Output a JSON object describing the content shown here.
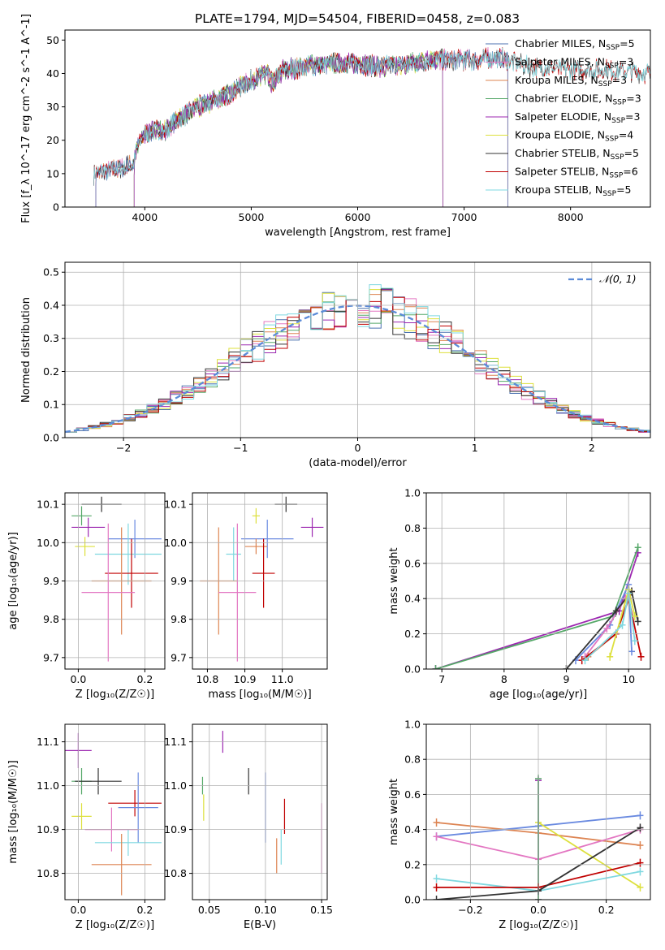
{
  "title": "PLATE=1794, MJD=54504, FIBERID=0458, z=0.083",
  "colors": {
    "Chabrier MILES": "#4c72b0",
    "Salpeter MILES": "#e377c2",
    "Kroupa MILES": "#dd8452",
    "Chabrier ELODIE": "#55a868",
    "Salpeter ELODIE": "#9c27b0",
    "Kroupa ELODIE": "#dde03d",
    "Chabrier STELIB": "#333333",
    "Salpeter STELIB": "#c00000",
    "Kroupa STELIB": "#7fd8e0",
    "Chabrier MILES (weights)": "#6a8ae0",
    "Chabrier ELODIE (markers)": "#4d8f4d"
  },
  "chart_data": [
    {
      "type": "line",
      "name": "spectrum",
      "xlabel": "wavelength [Angstrom, rest frame]",
      "ylabel": "Flux [f_λ 10^-17 erg cm^-2 s^-1 A^-1]",
      "xlim": [
        3250,
        8750
      ],
      "ylim": [
        0,
        53
      ],
      "xticks": [
        "4000",
        "5000",
        "6000",
        "7000",
        "8000"
      ],
      "yticks": [
        "0",
        "10",
        "20",
        "30",
        "40",
        "50"
      ],
      "legend_position": "right",
      "legend": [
        {
          "label": "Chabrier MILES, N",
          "sub": "SSP",
          "tail": "=5",
          "key": "Chabrier MILES"
        },
        {
          "label": "Salpeter MILES, N",
          "sub": "SSP",
          "tail": "=3",
          "key": "Salpeter MILES"
        },
        {
          "label": "Kroupa MILES, N",
          "sub": "SSP",
          "tail": "=3",
          "key": "Kroupa MILES"
        },
        {
          "label": "Chabrier ELODIE, N",
          "sub": "SSP",
          "tail": "=3",
          "key": "Chabrier ELODIE"
        },
        {
          "label": "Salpeter ELODIE, N",
          "sub": "SSP",
          "tail": "=3",
          "key": "Salpeter ELODIE"
        },
        {
          "label": "Kroupa ELODIE, N",
          "sub": "SSP",
          "tail": "=4",
          "key": "Kroupa ELODIE"
        },
        {
          "label": "Chabrier STELIB, N",
          "sub": "SSP",
          "tail": "=5",
          "key": "Chabrier STELIB"
        },
        {
          "label": "Salpeter STELIB, N",
          "sub": "SSP",
          "tail": "=6",
          "key": "Salpeter STELIB"
        },
        {
          "label": "Kroupa STELIB, N",
          "sub": "SSP",
          "tail": "=5",
          "key": "Kroupa STELIB"
        }
      ],
      "continuum_x": [
        3520,
        3700,
        3900,
        3920,
        4000,
        4100,
        4200,
        4300,
        4500,
        4800,
        5000,
        5150,
        5200,
        5300,
        5500,
        5800,
        6000,
        6200,
        6500,
        6700,
        6900,
        7100,
        7300,
        7600,
        8000,
        8400,
        8750
      ],
      "continuum_y": [
        10,
        11,
        13,
        17,
        22,
        23,
        23,
        26,
        30,
        34,
        38,
        40,
        37,
        41,
        42,
        43,
        43,
        42,
        43,
        44,
        44,
        44,
        45,
        42,
        41,
        41,
        40
      ],
      "cutoffs": [
        {
          "key": "Kroupa MILES",
          "x0": 3540,
          "x1": 7410
        },
        {
          "key": "Salpeter MILES",
          "x0": 3540,
          "x1": 7410
        },
        {
          "key": "Chabrier MILES",
          "x0": 3540,
          "x1": 7410
        },
        {
          "key": "Kroupa ELODIE",
          "x0": 3900,
          "x1": 6800
        },
        {
          "key": "Chabrier ELODIE",
          "x0": 3900,
          "x1": 6800
        },
        {
          "key": "Salpeter ELODIE",
          "x0": 3900,
          "x1": 6800
        },
        {
          "key": "Chabrier STELIB",
          "x0": 3520,
          "x1": 8750
        },
        {
          "key": "Salpeter STELIB",
          "x0": 3520,
          "x1": 8750
        },
        {
          "key": "Kroupa STELIB",
          "x0": 3520,
          "x1": 8750
        }
      ]
    },
    {
      "type": "histogram",
      "name": "residuals",
      "xlabel": "(data-model)/error",
      "ylabel": "Normed distribution",
      "xlim": [
        -2.5,
        2.5
      ],
      "ylim": [
        0,
        0.53
      ],
      "xticks": [
        "−2",
        "−1",
        "0",
        "1",
        "2"
      ],
      "yticks": [
        "0.0",
        "0.1",
        "0.2",
        "0.3",
        "0.4",
        "0.5"
      ],
      "legend": "𝒩(0, 1)",
      "legend_position": "top-right",
      "bin_width": 0.1
    },
    {
      "type": "scatter",
      "name": "age-vs-Z",
      "xlabel": "Z [log₁₀(Z/Z☉)]",
      "ylabel": "age  [log₁₀(age/yr)]",
      "xlim": [
        -0.04,
        0.26
      ],
      "ylim": [
        9.67,
        10.13
      ],
      "xticks": [
        "0.0",
        "0.2"
      ],
      "yticks": [
        "9.7",
        "9.8",
        "9.9",
        "10.0",
        "10.1"
      ],
      "points": [
        {
          "key": "Chabrier STELIB",
          "x": 0.07,
          "y": 10.1,
          "xerr": 0.06,
          "yerr": 0.02
        },
        {
          "key": "Chabrier ELODIE",
          "x": 0.01,
          "y": 10.07,
          "xerr": 0.03,
          "yerr": 0.025
        },
        {
          "key": "Salpeter ELODIE",
          "x": 0.03,
          "y": 10.04,
          "xerr": 0.05,
          "yerr": 0.025
        },
        {
          "key": "Chabrier MILES (weights)",
          "x": 0.17,
          "y": 10.01,
          "xerr": 0.08,
          "yerr": 0.05
        },
        {
          "key": "Kroupa ELODIE",
          "x": 0.02,
          "y": 9.99,
          "xerr": 0.03,
          "yerr": 0.025
        },
        {
          "key": "Kroupa STELIB",
          "x": 0.15,
          "y": 9.97,
          "xerr": 0.1,
          "yerr": 0.08
        },
        {
          "key": "Salpeter STELIB",
          "x": 0.16,
          "y": 9.92,
          "xerr": 0.08,
          "yerr": 0.09
        },
        {
          "key": "Kroupa MILES",
          "x": 0.13,
          "y": 9.9,
          "xerr": 0.09,
          "yerr": 0.14
        },
        {
          "key": "Salpeter MILES",
          "x": 0.09,
          "y": 9.87,
          "xerr": 0.08,
          "yerr": 0.18
        }
      ]
    },
    {
      "type": "scatter",
      "name": "age-vs-mass",
      "xlabel": "mass [log₁₀(M/M☉)]",
      "ylabel": "",
      "xlim": [
        10.76,
        11.12
      ],
      "ylim": [
        9.67,
        10.13
      ],
      "xticks": [
        "10.8",
        "10.9",
        "11.0"
      ],
      "yticks": [
        "9.7",
        "9.8",
        "9.9",
        "10.0",
        "10.1"
      ],
      "points": [
        {
          "key": "Chabrier STELIB",
          "x": 11.01,
          "y": 10.1,
          "xerr": 0.03,
          "yerr": 0.02
        },
        {
          "key": "Kroupa ELODIE",
          "x": 10.93,
          "y": 10.07,
          "xerr": 0.01,
          "yerr": 0.02
        },
        {
          "key": "Salpeter ELODIE",
          "x": 11.08,
          "y": 10.04,
          "xerr": 0.03,
          "yerr": 0.025
        },
        {
          "key": "Chabrier MILES (weights)",
          "x": 10.96,
          "y": 10.01,
          "xerr": 0.07,
          "yerr": 0.05
        },
        {
          "key": "Kroupa MILES",
          "x": 10.93,
          "y": 9.99,
          "xerr": 0.03,
          "yerr": 0.02
        },
        {
          "key": "Kroupa STELIB",
          "x": 10.87,
          "y": 9.97,
          "xerr": 0.02,
          "yerr": 0.07
        },
        {
          "key": "Salpeter STELIB",
          "x": 10.95,
          "y": 9.92,
          "xerr": 0.03,
          "yerr": 0.09
        },
        {
          "key": "Kroupa MILES",
          "x": 10.83,
          "y": 9.9,
          "xerr": 0.05,
          "yerr": 0.14
        },
        {
          "key": "Salpeter MILES",
          "x": 10.88,
          "y": 9.87,
          "xerr": 0.05,
          "yerr": 0.18
        }
      ]
    },
    {
      "type": "line",
      "name": "weight-vs-age",
      "xlabel": "age  [log₁₀(age/yr)]",
      "ylabel": "mass weight",
      "xlim": [
        6.75,
        10.35
      ],
      "ylim": [
        0,
        1.0
      ],
      "xticks": [
        "7",
        "8",
        "9",
        "10"
      ],
      "yticks": [
        "0.0",
        "0.2",
        "0.4",
        "0.6",
        "0.8",
        "1.0"
      ],
      "grid": true,
      "series": [
        {
          "key": "Salpeter ELODIE",
          "x": [
            6.9,
            9.85,
            10.15
          ],
          "y": [
            0.0,
            0.33,
            0.66
          ]
        },
        {
          "key": "Chabrier ELODIE",
          "x": [
            6.9,
            9.75,
            10.15
          ],
          "y": [
            0.0,
            0.3,
            0.69
          ]
        },
        {
          "key": "Chabrier MILES (weights)",
          "x": [
            9.15,
            9.7,
            10.0,
            10.05
          ],
          "y": [
            0.05,
            0.25,
            0.48,
            0.1
          ]
        },
        {
          "key": "Salpeter MILES",
          "x": [
            9.3,
            9.65,
            9.95
          ],
          "y": [
            0.07,
            0.23,
            0.4
          ]
        },
        {
          "key": "Kroupa MILES",
          "x": [
            9.35,
            9.8,
            10.05
          ],
          "y": [
            0.07,
            0.2,
            0.44
          ]
        },
        {
          "key": "Salpeter STELIB",
          "x": [
            9.25,
            9.8,
            10.0,
            10.2
          ],
          "y": [
            0.05,
            0.2,
            0.4,
            0.07
          ]
        },
        {
          "key": "Chabrier STELIB",
          "x": [
            9.0,
            9.8,
            10.05,
            10.15
          ],
          "y": [
            0.0,
            0.33,
            0.44,
            0.27
          ]
        },
        {
          "key": "Kroupa ELODIE",
          "x": [
            9.7,
            10.0,
            10.1
          ],
          "y": [
            0.07,
            0.45,
            0.3
          ]
        },
        {
          "key": "Kroupa STELIB",
          "x": [
            9.3,
            9.9,
            10.0,
            10.1
          ],
          "y": [
            0.05,
            0.25,
            0.43,
            0.16
          ]
        }
      ]
    },
    {
      "type": "scatter",
      "name": "mass-vs-Z",
      "xlabel": "Z [log₁₀(Z/Z☉)]",
      "ylabel": "mass [log₁₀(M/M☉)]",
      "xlim": [
        -0.04,
        0.26
      ],
      "ylim": [
        10.74,
        11.14
      ],
      "xticks": [
        "0.0",
        "0.2"
      ],
      "yticks": [
        "10.8",
        "10.9",
        "11.0",
        "11.1"
      ],
      "points": [
        {
          "key": "Salpeter ELODIE",
          "x": 0.0,
          "y": 11.08,
          "xerr": 0.04,
          "yerr": 0.04
        },
        {
          "key": "Chabrier ELODIE",
          "x": 0.01,
          "y": 11.01,
          "xerr": 0.03,
          "yerr": 0.03
        },
        {
          "key": "Chabrier STELIB",
          "x": 0.06,
          "y": 11.01,
          "xerr": 0.07,
          "yerr": 0.03
        },
        {
          "key": "Salpeter STELIB",
          "x": 0.17,
          "y": 10.96,
          "xerr": 0.08,
          "yerr": 0.03
        },
        {
          "key": "Chabrier MILES (weights)",
          "x": 0.18,
          "y": 10.95,
          "xerr": 0.06,
          "yerr": 0.08
        },
        {
          "key": "Kroupa ELODIE",
          "x": 0.01,
          "y": 10.93,
          "xerr": 0.03,
          "yerr": 0.03
        },
        {
          "key": "Salpeter MILES",
          "x": 0.1,
          "y": 10.9,
          "xerr": 0.08,
          "yerr": 0.05
        },
        {
          "key": "Kroupa STELIB",
          "x": 0.15,
          "y": 10.87,
          "xerr": 0.1,
          "yerr": 0.03
        },
        {
          "key": "Kroupa MILES",
          "x": 0.13,
          "y": 10.82,
          "xerr": 0.09,
          "yerr": 0.07
        }
      ]
    },
    {
      "type": "scatter",
      "name": "mass-vs-EBV",
      "xlabel": "E(B-V)",
      "ylabel": "",
      "xlim": [
        0.035,
        0.155
      ],
      "ylim": [
        10.74,
        11.14
      ],
      "xticks": [
        "0.05",
        "0.10",
        "0.15"
      ],
      "yticks": [
        "10.8",
        "10.9",
        "11.0",
        "11.1"
      ],
      "points": [
        {
          "key": "Salpeter ELODIE",
          "x": 0.062,
          "y": 11.1,
          "yerr": 0.025
        },
        {
          "key": "Chabrier ELODIE",
          "x": 0.044,
          "y": 11.0,
          "yerr": 0.02
        },
        {
          "key": "Kroupa ELODIE",
          "x": 0.045,
          "y": 10.95,
          "yerr": 0.03
        },
        {
          "key": "Chabrier STELIB",
          "x": 0.085,
          "y": 11.01,
          "yerr": 0.03
        },
        {
          "key": "Chabrier MILES (weights)",
          "x": 0.1,
          "y": 10.95,
          "yerr": 0.08
        },
        {
          "key": "Salpeter STELIB",
          "x": 0.117,
          "y": 10.93,
          "yerr": 0.04
        },
        {
          "key": "Kroupa STELIB",
          "x": 0.114,
          "y": 10.86,
          "yerr": 0.04
        },
        {
          "key": "Kroupa MILES",
          "x": 0.11,
          "y": 10.84,
          "yerr": 0.04
        },
        {
          "key": "Salpeter MILES",
          "x": 0.15,
          "y": 10.88,
          "yerr": 0.08
        }
      ]
    },
    {
      "type": "line",
      "name": "weight-vs-Z",
      "xlabel": "Z [log₁₀(Z/Z☉)]",
      "ylabel": "mass weight",
      "xlim": [
        -0.33,
        0.33
      ],
      "ylim": [
        0,
        1.0
      ],
      "xticks": [
        "−0.2",
        "0.0",
        "0.2"
      ],
      "yticks": [
        "0.0",
        "0.2",
        "0.4",
        "0.6",
        "0.8",
        "1.0"
      ],
      "grid": true,
      "series": [
        {
          "key": "Kroupa MILES",
          "x": [
            -0.3,
            0.0,
            0.3
          ],
          "y": [
            0.44,
            0.38,
            0.31
          ]
        },
        {
          "key": "Chabrier MILES (weights)",
          "x": [
            -0.3,
            0.0,
            0.3
          ],
          "y": [
            0.36,
            0.42,
            0.48
          ]
        },
        {
          "key": "Salpeter MILES",
          "x": [
            -0.3,
            0.0,
            0.3
          ],
          "y": [
            0.36,
            0.23,
            0.4
          ]
        },
        {
          "key": "Kroupa ELODIE",
          "x": [
            0.0,
            0.3
          ],
          "y": [
            0.44,
            0.07
          ]
        },
        {
          "key": "Salpeter ELODIE",
          "x": [
            0.0,
            0.0
          ],
          "y": [
            0.0,
            0.68
          ]
        },
        {
          "key": "Chabrier ELODIE",
          "x": [
            0.0,
            0.0
          ],
          "y": [
            0.0,
            0.69
          ]
        },
        {
          "key": "Kroupa STELIB",
          "x": [
            -0.3,
            0.0,
            0.3
          ],
          "y": [
            0.12,
            0.05,
            0.16
          ]
        },
        {
          "key": "Salpeter STELIB",
          "x": [
            -0.3,
            0.0,
            0.3
          ],
          "y": [
            0.07,
            0.07,
            0.21
          ]
        },
        {
          "key": "Chabrier STELIB",
          "x": [
            -0.3,
            0.0,
            0.3
          ],
          "y": [
            0.0,
            0.05,
            0.41
          ]
        }
      ]
    }
  ]
}
